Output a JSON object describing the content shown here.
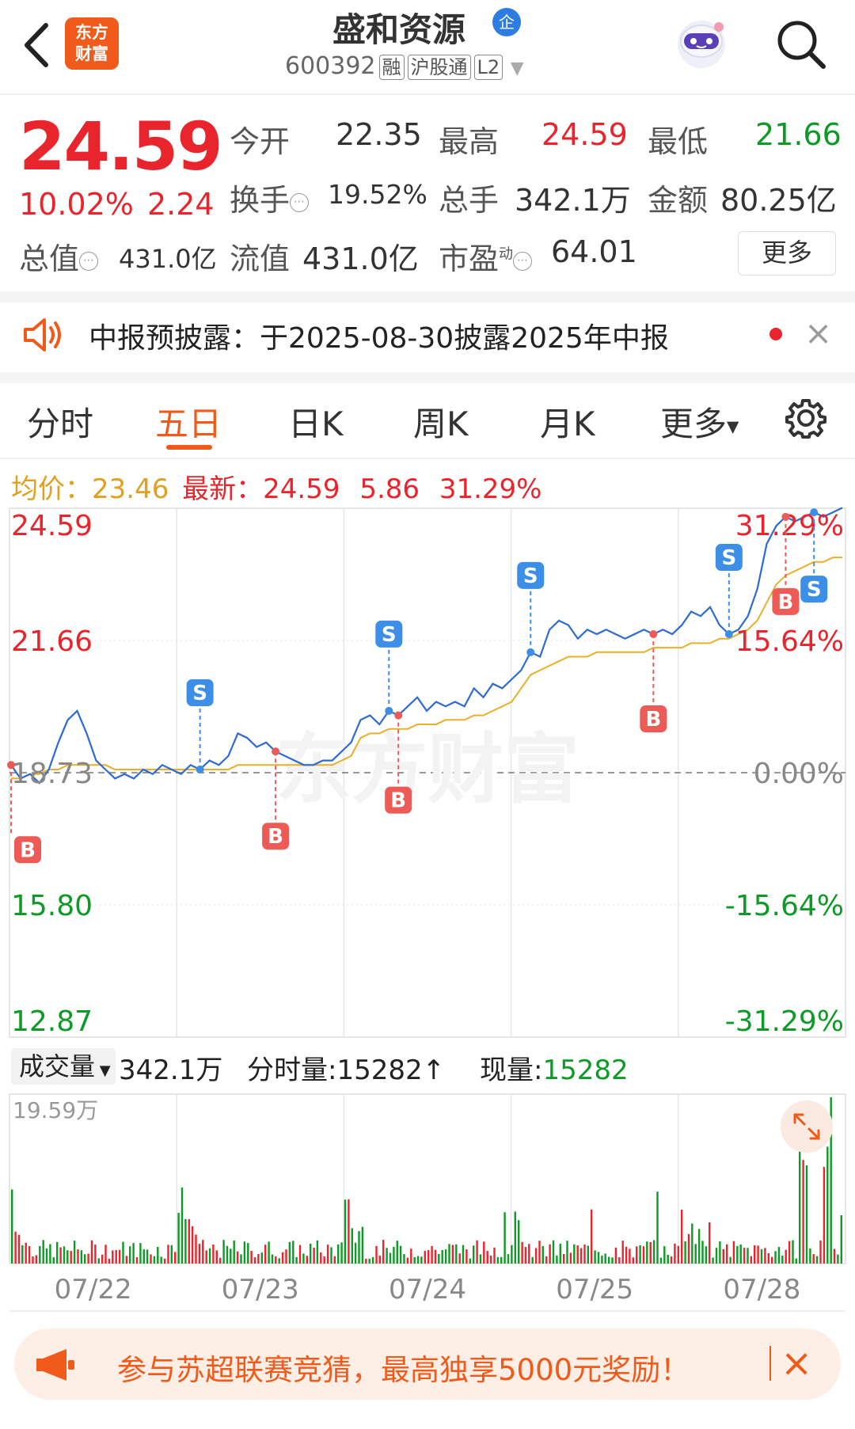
{
  "header": {
    "back_label": "<",
    "logo_line1": "东方",
    "logo_line2": "财富",
    "stock_name": "盛和资源",
    "corp_badge": "企",
    "code": "600392",
    "tags": [
      "融",
      "沪股通",
      "L2"
    ]
  },
  "quote": {
    "price": "24.59",
    "change_pct": "10.02%",
    "change_abs": "2.24",
    "open_label": "今开",
    "open": "22.35",
    "high_label": "最高",
    "high": "24.59",
    "low_label": "最低",
    "low": "21.66",
    "turnover_label": "换手",
    "turnover": "19.52%",
    "volume_label": "总手",
    "volume": "342.1万",
    "amount_label": "金额",
    "amount": "80.25亿",
    "mktcap_label": "总值",
    "mktcap": "431.0亿",
    "float_label": "流值",
    "float_cap": "431.0亿",
    "pe_label": "市盈",
    "pe_sup": "动",
    "pe": "64.01",
    "more_label": "更多"
  },
  "notice": {
    "text": "中报预披露：于2025-08-30披露2025年中报",
    "close": "×"
  },
  "tabs": [
    "分时",
    "五日",
    "日K",
    "周K",
    "月K",
    "更多"
  ],
  "active_tab": 1,
  "avg_row": {
    "avg_label": "均价：",
    "avg": "23.46",
    "latest_label": "最新：",
    "latest": "24.59",
    "change": "5.86",
    "pct": "31.29%"
  },
  "watermark": "东方财富",
  "chart_data": {
    "type": "line",
    "title": "",
    "y_left_ticks": [
      "24.59",
      "21.66",
      "18.73",
      "15.80",
      "12.87"
    ],
    "y_right_ticks": [
      "31.29%",
      "15.64%",
      "0.00%",
      "-15.64%",
      "-31.29%"
    ],
    "ylim": [
      12.87,
      24.59
    ],
    "base_price": 18.73,
    "x_ticks": [
      "07/22",
      "07/23",
      "07/24",
      "07/25",
      "07/28"
    ],
    "series": [
      {
        "values": [
          18.9,
          18.6,
          18.7,
          18.5,
          18.8,
          19.4,
          19.9,
          20.1,
          19.6,
          19.0,
          18.8,
          18.6,
          18.7,
          18.6,
          18.8,
          18.7,
          18.9,
          18.8,
          18.7,
          18.9,
          18.8,
          19.0,
          18.9,
          19.1,
          19.6,
          19.5,
          19.3,
          19.4,
          19.2,
          19.1,
          19.0,
          18.9,
          18.9,
          19.0,
          19.0,
          19.2,
          19.4,
          19.9,
          20.0,
          19.8,
          20.1,
          20.0,
          20.2,
          20.4,
          20.1,
          20.3,
          20.2,
          20.3,
          20.2,
          20.6,
          20.4,
          20.7,
          20.6,
          20.8,
          21.0,
          21.4,
          21.3,
          21.9,
          22.1,
          22.0,
          21.7,
          21.9,
          21.8,
          21.9,
          21.8,
          21.7,
          21.8,
          21.9,
          21.8,
          21.9,
          21.8,
          22.0,
          22.3,
          22.2,
          22.4,
          22.0,
          21.8,
          21.9,
          22.2,
          22.8,
          23.8,
          24.2,
          24.4,
          24.3,
          24.4,
          24.5,
          24.4,
          24.5,
          24.6
        ]
      },
      {
        "name": "均价",
        "values": [
          18.6,
          18.6,
          18.7,
          18.7,
          18.8,
          18.8,
          18.9,
          18.9,
          18.9,
          18.9,
          18.9,
          18.8,
          18.8,
          18.8,
          18.8,
          18.8,
          18.8,
          18.8,
          18.8,
          18.8,
          18.8,
          18.8,
          18.8,
          18.8,
          18.9,
          18.9,
          18.9,
          18.9,
          18.9,
          18.9,
          18.9,
          18.9,
          18.9,
          18.9,
          18.9,
          19.0,
          19.1,
          19.5,
          19.6,
          19.6,
          19.7,
          19.7,
          19.7,
          19.8,
          19.8,
          19.8,
          19.9,
          19.9,
          19.9,
          20.0,
          20.0,
          20.1,
          20.2,
          20.3,
          20.6,
          20.9,
          21.0,
          21.1,
          21.2,
          21.3,
          21.3,
          21.3,
          21.4,
          21.4,
          21.4,
          21.4,
          21.4,
          21.4,
          21.5,
          21.5,
          21.5,
          21.5,
          21.6,
          21.6,
          21.6,
          21.7,
          21.7,
          21.8,
          21.9,
          22.1,
          22.5,
          22.9,
          23.1,
          23.2,
          23.3,
          23.4,
          23.4,
          23.5,
          23.5
        ]
      }
    ],
    "signals": [
      {
        "type": "B",
        "index": 0
      },
      {
        "type": "S",
        "index": 20
      },
      {
        "type": "B",
        "index": 28
      },
      {
        "type": "S",
        "index": 40
      },
      {
        "type": "B",
        "index": 41
      },
      {
        "type": "S",
        "index": 55
      },
      {
        "type": "B",
        "index": 68
      },
      {
        "type": "S",
        "index": 76
      },
      {
        "type": "B",
        "index": 82
      },
      {
        "type": "S",
        "index": 85
      }
    ]
  },
  "volume": {
    "dropdown_label": "成交量",
    "total": "342.1万",
    "bar_label": "分时量:",
    "bar_value": "15282",
    "bar_arrow": "↑",
    "now_label": "现量:",
    "now_value": "15282",
    "max_label": "19.59万"
  },
  "banner": {
    "text": "参与苏超联赛竞猜，最高独享5000元奖励！",
    "close": "×"
  },
  "colors": {
    "up": "#e8252c",
    "down": "#0e9a26",
    "accent": "#f05a1a",
    "price_line": "#2d6bd1",
    "avg_line": "#e8b02a",
    "sell_signal": "#3d8ee6"
  }
}
